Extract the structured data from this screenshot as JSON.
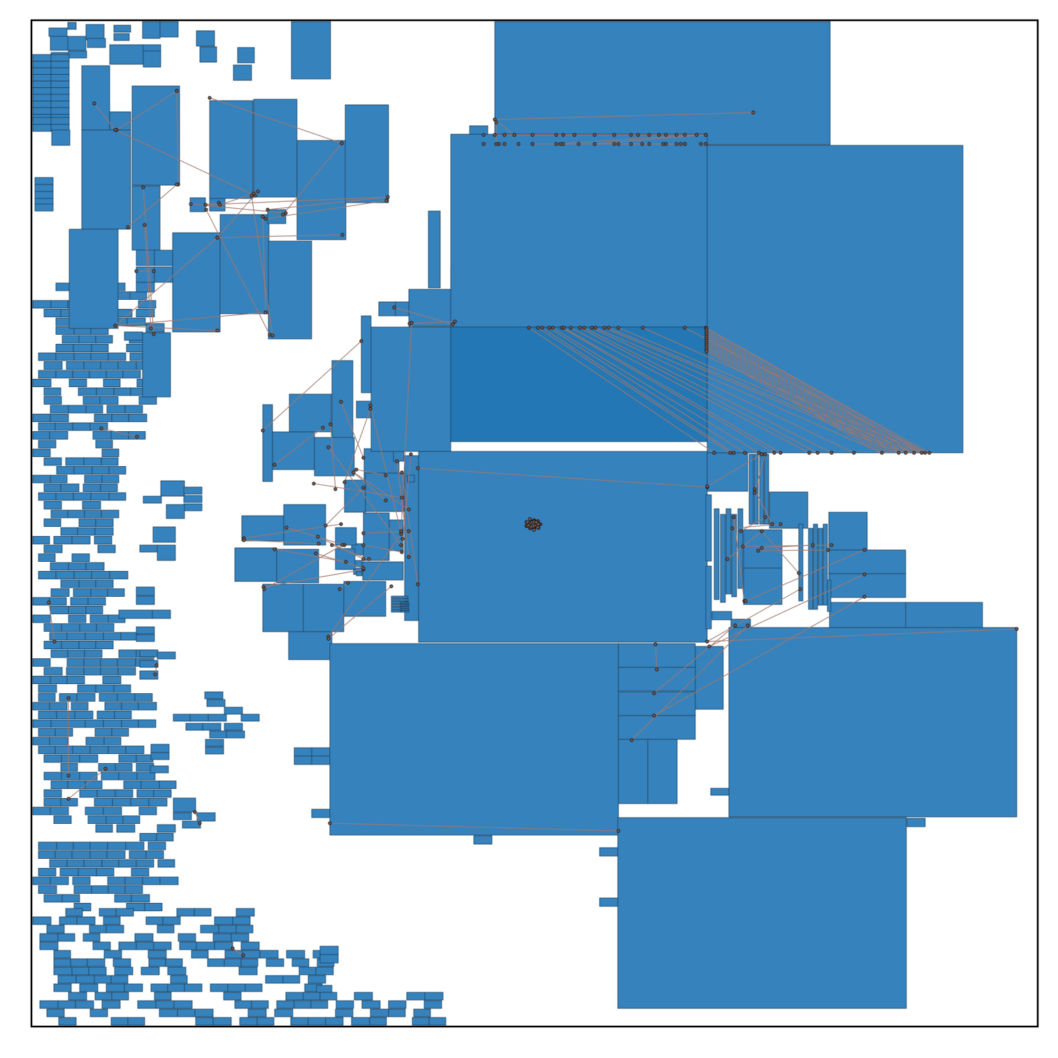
{
  "colors": {
    "block_fill": "#3682bc",
    "block_fill_dark": "#2277b4",
    "block_stroke": "#1f3f5a",
    "edge": "#a0786e",
    "node_fill": "#7a5a50",
    "node_stroke": "#111111",
    "frame": "#000000",
    "background": "#ffffff"
  },
  "diagram": {
    "type": "floorplan-with-connections",
    "frame": "plot-border",
    "labels": "none"
  }
}
